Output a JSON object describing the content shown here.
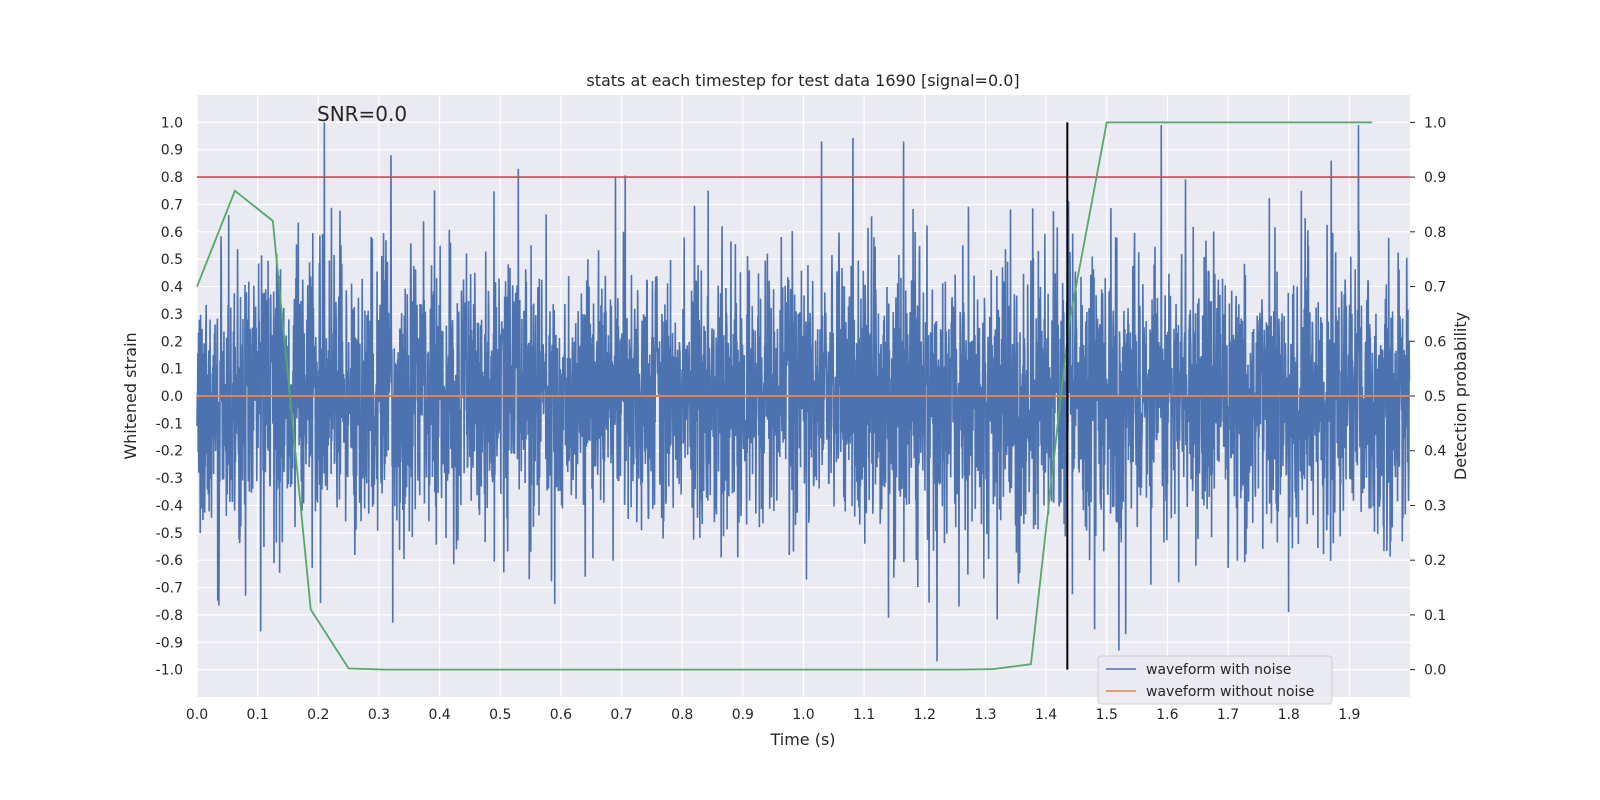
{
  "chart_data": {
    "type": "line",
    "title": "stats at each timestep for test data 1690 [signal=0.0]",
    "xlabel": "Time (s)",
    "ylabel": "Whitened strain",
    "y2label": "Detection probability",
    "annotation": "SNR=0.0",
    "xlim": [
      0.0,
      2.0
    ],
    "ylim": [
      -1.1,
      1.1
    ],
    "y2lim": [
      -0.05,
      1.05
    ],
    "x_ticks": [
      "0.0",
      "0.1",
      "0.2",
      "0.3",
      "0.4",
      "0.5",
      "0.6",
      "0.7",
      "0.8",
      "0.9",
      "1.0",
      "1.1",
      "1.2",
      "1.3",
      "1.4",
      "1.5",
      "1.6",
      "1.7",
      "1.8",
      "1.9"
    ],
    "y_ticks": [
      "-1.0",
      "-0.9",
      "-0.8",
      "-0.7",
      "-0.6",
      "-0.5",
      "-0.4",
      "-0.3",
      "-0.2",
      "-0.1",
      "0.0",
      "0.1",
      "0.2",
      "0.3",
      "0.4",
      "0.5",
      "0.6",
      "0.7",
      "0.8",
      "0.9",
      "1.0"
    ],
    "y2_ticks": [
      "0.0",
      "0.1",
      "0.2",
      "0.3",
      "0.4",
      "0.5",
      "0.6",
      "0.7",
      "0.8",
      "0.9",
      "1.0"
    ],
    "grid": true,
    "legend_position": "bottom-right",
    "threshold_line": {
      "y2": 0.9,
      "color": "#c44e52"
    },
    "vertical_marker": {
      "x": 1.435,
      "color": "#000000"
    },
    "series": [
      {
        "name": "waveform with noise",
        "axis": "left",
        "color": "#4c72b0",
        "sample_rate": 2048,
        "duration": 2.0,
        "seed": 1690,
        "noise_sigma": 0.25,
        "spikes": [
          {
            "x": 0.21,
            "y": 1.0
          },
          {
            "x": 0.32,
            "y": 0.88
          },
          {
            "x": 0.53,
            "y": 0.83
          },
          {
            "x": 0.69,
            "y": 0.8
          },
          {
            "x": 1.03,
            "y": 0.93
          },
          {
            "x": 1.165,
            "y": 0.93
          },
          {
            "x": 1.59,
            "y": 0.99
          },
          {
            "x": 1.915,
            "y": 0.99
          },
          {
            "x": 1.87,
            "y": 0.86
          },
          {
            "x": 0.105,
            "y": -0.86
          },
          {
            "x": 1.22,
            "y": -0.97
          },
          {
            "x": 1.52,
            "y": -0.93
          },
          {
            "x": 0.08,
            "y": -0.73
          },
          {
            "x": 1.8,
            "y": -0.79
          },
          {
            "x": 0.59,
            "y": -0.76
          }
        ]
      },
      {
        "name": "waveform without noise",
        "axis": "left",
        "color": "#dd8452",
        "x": [
          0.0,
          2.0
        ],
        "y": [
          0.0,
          0.0
        ]
      },
      {
        "name": "detection probability",
        "axis": "right",
        "color": "#55a868",
        "x": [
          0.0,
          0.0625,
          0.125,
          0.1875,
          0.25,
          0.3125,
          0.375,
          0.4375,
          0.5,
          0.5625,
          0.625,
          0.6875,
          0.75,
          0.8125,
          0.875,
          0.9375,
          1.0,
          1.0625,
          1.125,
          1.1875,
          1.25,
          1.3125,
          1.375,
          1.4375,
          1.5,
          1.5625,
          1.625,
          1.6875,
          1.75,
          1.8125,
          1.875,
          1.9375
        ],
        "y": [
          0.7,
          0.875,
          0.82,
          0.11,
          0.002,
          0.0,
          0.0,
          0.0,
          0.0,
          0.0,
          0.0,
          0.0,
          0.0,
          0.0,
          0.0,
          0.0,
          0.0,
          0.0,
          0.0,
          0.0,
          0.0,
          0.001,
          0.01,
          0.63,
          1.0,
          1.0,
          1.0,
          1.0,
          1.0,
          1.0,
          1.0,
          1.0
        ]
      }
    ]
  }
}
